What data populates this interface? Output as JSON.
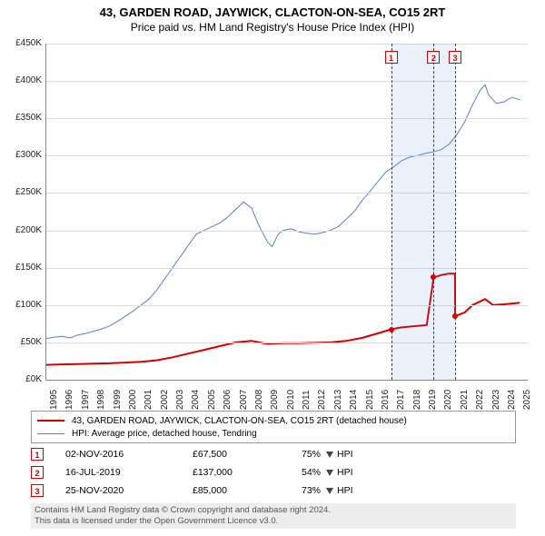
{
  "title": "43, GARDEN ROAD, JAYWICK, CLACTON-ON-SEA, CO15 2RT",
  "subtitle": "Price paid vs. HM Land Registry's House Price Index (HPI)",
  "chart": {
    "type": "line",
    "background_color": "#ffffff",
    "grid_color": "#dcdcdc",
    "y": {
      "min": 0,
      "max": 450000,
      "step": 50000,
      "prefix": "£",
      "suffix": "K",
      "divide": 1000
    },
    "x": {
      "min": 1995,
      "max": 2025.5,
      "ticks": [
        1995,
        1996,
        1997,
        1998,
        1999,
        2000,
        2001,
        2002,
        2003,
        2004,
        2005,
        2006,
        2007,
        2008,
        2009,
        2010,
        2011,
        2012,
        2013,
        2014,
        2015,
        2016,
        2017,
        2018,
        2019,
        2020,
        2021,
        2022,
        2023,
        2024,
        2025
      ]
    },
    "marker_band": {
      "start": 2016.84,
      "end": 2020.9,
      "color": "rgba(90,140,220,0.12)"
    },
    "series": [
      {
        "name": "property",
        "label": "43, GARDEN ROAD, JAYWICK, CLACTON-ON-SEA, CO15 2RT (detached house)",
        "color": "#d40000",
        "width": 2,
        "data": [
          [
            1995,
            20000
          ],
          [
            1996,
            20500
          ],
          [
            1997,
            21000
          ],
          [
            1998,
            21500
          ],
          [
            1999,
            22000
          ],
          [
            2000,
            23000
          ],
          [
            2001,
            24000
          ],
          [
            2002,
            26000
          ],
          [
            2003,
            30000
          ],
          [
            2004,
            35000
          ],
          [
            2005,
            40000
          ],
          [
            2006,
            45000
          ],
          [
            2007,
            50000
          ],
          [
            2008,
            52000
          ],
          [
            2009,
            48000
          ],
          [
            2010,
            49000
          ],
          [
            2011,
            49000
          ],
          [
            2012,
            49500
          ],
          [
            2013,
            50000
          ],
          [
            2014,
            52000
          ],
          [
            2015,
            56000
          ],
          [
            2016,
            62000
          ],
          [
            2016.84,
            67500
          ],
          [
            2017.5,
            70000
          ],
          [
            2018.5,
            72000
          ],
          [
            2019.0,
            73000
          ],
          [
            2019.1,
            73500
          ],
          [
            2019.54,
            137000
          ],
          [
            2020.0,
            140000
          ],
          [
            2020.5,
            142000
          ],
          [
            2020.89,
            142000
          ],
          [
            2020.9,
            85000
          ],
          [
            2021.5,
            90000
          ],
          [
            2022,
            100000
          ],
          [
            2022.8,
            108000
          ],
          [
            2023.3,
            100000
          ],
          [
            2024,
            101000
          ],
          [
            2025,
            103000
          ]
        ]
      },
      {
        "name": "hpi",
        "label": "HPI: Average price, detached house, Tendring",
        "color": "#5b7fc7",
        "width": 1,
        "data": [
          [
            1995,
            55000
          ],
          [
            1995.5,
            57000
          ],
          [
            1996,
            58000
          ],
          [
            1996.5,
            56000
          ],
          [
            1997,
            60000
          ],
          [
            1997.5,
            62000
          ],
          [
            1998,
            65000
          ],
          [
            1998.5,
            68000
          ],
          [
            1999,
            72000
          ],
          [
            1999.5,
            78000
          ],
          [
            2000,
            85000
          ],
          [
            2000.5,
            92000
          ],
          [
            2001,
            100000
          ],
          [
            2001.5,
            108000
          ],
          [
            2002,
            120000
          ],
          [
            2002.5,
            135000
          ],
          [
            2003,
            150000
          ],
          [
            2003.5,
            165000
          ],
          [
            2004,
            180000
          ],
          [
            2004.5,
            195000
          ],
          [
            2005,
            200000
          ],
          [
            2005.5,
            205000
          ],
          [
            2006,
            210000
          ],
          [
            2006.5,
            218000
          ],
          [
            2007,
            228000
          ],
          [
            2007.5,
            238000
          ],
          [
            2008,
            230000
          ],
          [
            2008.5,
            205000
          ],
          [
            2009,
            185000
          ],
          [
            2009.3,
            178000
          ],
          [
            2009.7,
            195000
          ],
          [
            2010,
            200000
          ],
          [
            2010.5,
            202000
          ],
          [
            2011,
            198000
          ],
          [
            2011.5,
            196000
          ],
          [
            2012,
            195000
          ],
          [
            2012.5,
            197000
          ],
          [
            2013,
            200000
          ],
          [
            2013.5,
            205000
          ],
          [
            2014,
            215000
          ],
          [
            2014.5,
            225000
          ],
          [
            2015,
            240000
          ],
          [
            2015.5,
            252000
          ],
          [
            2016,
            265000
          ],
          [
            2016.5,
            278000
          ],
          [
            2017,
            285000
          ],
          [
            2017.5,
            293000
          ],
          [
            2018,
            298000
          ],
          [
            2018.5,
            300000
          ],
          [
            2019,
            303000
          ],
          [
            2019.5,
            305000
          ],
          [
            2020,
            308000
          ],
          [
            2020.5,
            315000
          ],
          [
            2021,
            328000
          ],
          [
            2021.5,
            345000
          ],
          [
            2022,
            368000
          ],
          [
            2022.5,
            388000
          ],
          [
            2022.8,
            395000
          ],
          [
            2023,
            382000
          ],
          [
            2023.5,
            370000
          ],
          [
            2024,
            372000
          ],
          [
            2024.5,
            378000
          ],
          [
            2025,
            375000
          ]
        ]
      }
    ],
    "markers": [
      {
        "id": "1",
        "x": 2016.84,
        "date": "02-NOV-2016",
        "price": 67500,
        "price_label": "£67,500",
        "pct": "75%",
        "dir": "down",
        "rel": "HPI"
      },
      {
        "id": "2",
        "x": 2019.54,
        "date": "16-JUL-2019",
        "price": 137000,
        "price_label": "£137,000",
        "pct": "54%",
        "dir": "down",
        "rel": "HPI"
      },
      {
        "id": "3",
        "x": 2020.9,
        "date": "25-NOV-2020",
        "price": 85000,
        "price_label": "£85,000",
        "pct": "73%",
        "dir": "down",
        "rel": "HPI"
      }
    ]
  },
  "footer": {
    "line1": "Contains HM Land Registry data © Crown copyright and database right 2024.",
    "line2": "This data is licensed under the Open Government Licence v3.0."
  }
}
